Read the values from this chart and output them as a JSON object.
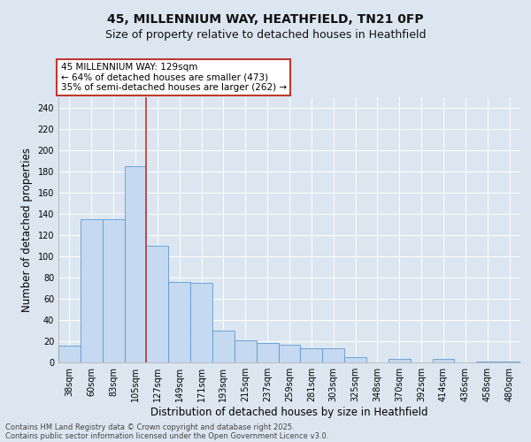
{
  "title1": "45, MILLENNIUM WAY, HEATHFIELD, TN21 0FP",
  "title2": "Size of property relative to detached houses in Heathfield",
  "xlabel": "Distribution of detached houses by size in Heathfield",
  "ylabel": "Number of detached properties",
  "categories": [
    "38sqm",
    "60sqm",
    "83sqm",
    "105sqm",
    "127sqm",
    "149sqm",
    "171sqm",
    "193sqm",
    "215sqm",
    "237sqm",
    "259sqm",
    "281sqm",
    "303sqm",
    "325sqm",
    "348sqm",
    "370sqm",
    "392sqm",
    "414sqm",
    "436sqm",
    "458sqm",
    "480sqm"
  ],
  "values": [
    16,
    135,
    135,
    185,
    110,
    76,
    75,
    30,
    21,
    18,
    17,
    13,
    13,
    5,
    0,
    3,
    0,
    3,
    0,
    1,
    1
  ],
  "bar_color": "#c5d9f0",
  "bar_edge_color": "#5b9bd5",
  "background_color": "#dce6f1",
  "grid_color": "#ffffff",
  "vline_index": 4,
  "vline_color": "#c0392b",
  "annotation_box_text": "45 MILLENNIUM WAY: 129sqm\n← 64% of detached houses are smaller (473)\n35% of semi-detached houses are larger (262) →",
  "annotation_box_color": "#ffffff",
  "annotation_box_edge_color": "#c0392b",
  "ylim": [
    0,
    250
  ],
  "yticks": [
    0,
    20,
    40,
    60,
    80,
    100,
    120,
    140,
    160,
    180,
    200,
    220,
    240
  ],
  "footer1": "Contains HM Land Registry data © Crown copyright and database right 2025.",
  "footer2": "Contains public sector information licensed under the Open Government Licence v3.0.",
  "title_fontsize": 10,
  "subtitle_fontsize": 9,
  "axis_label_fontsize": 8.5,
  "tick_fontsize": 7,
  "annotation_fontsize": 7.5,
  "footer_fontsize": 6
}
